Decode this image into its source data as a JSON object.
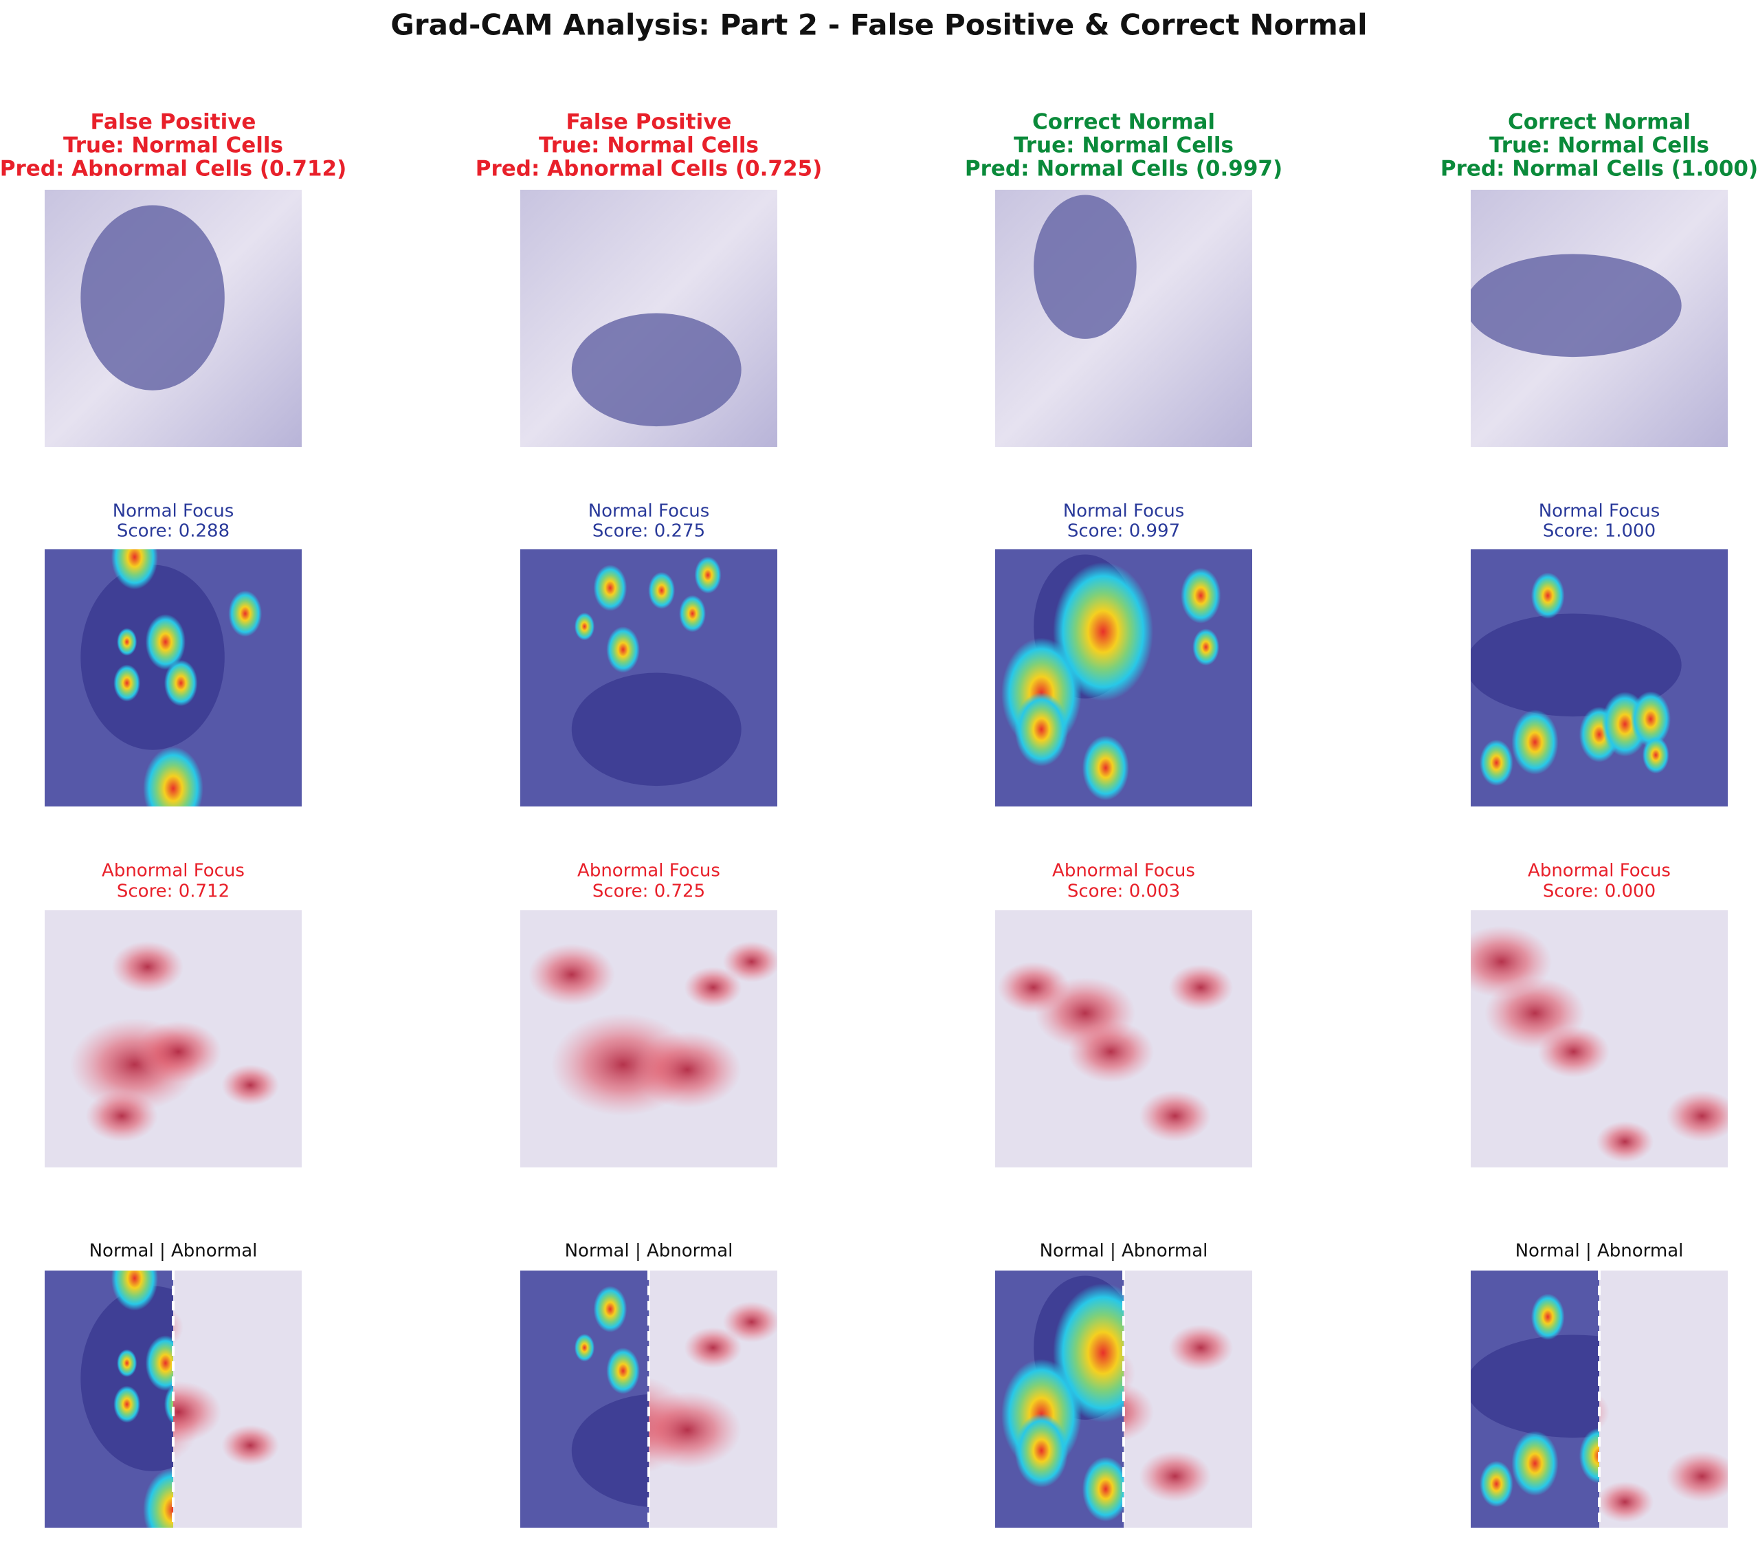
{
  "title": "Grad-CAM Analysis: Part 2 - False Positive & Correct Normal",
  "panels": [
    {
      "header": [
        "False Positive",
        "True: Normal Cells",
        "Pred: Abnormal Cells (0.712)"
      ],
      "normal_label": "Normal Focus",
      "normal_score": "Score: 0.288",
      "abnormal_label": "Abnormal Focus",
      "abnormal_score": "Score: 0.712",
      "split_label": "Normal | Abnormal"
    },
    {
      "header": [
        "False Positive",
        "True: Normal Cells",
        "Pred: Abnormal Cells (0.725)"
      ],
      "normal_label": "Normal Focus",
      "normal_score": "Score: 0.275",
      "abnormal_label": "Abnormal Focus",
      "abnormal_score": "Score: 0.725",
      "split_label": "Normal | Abnormal"
    },
    {
      "header": [
        "Correct Normal",
        "True: Normal Cells",
        "Pred: Normal Cells (0.997)"
      ],
      "normal_label": "Normal Focus",
      "normal_score": "Score: 0.997",
      "abnormal_label": "Abnormal Focus",
      "abnormal_score": "Score: 0.003",
      "split_label": "Normal | Abnormal"
    },
    {
      "header": [
        "Correct Normal",
        "True: Normal Cells",
        "Pred: Normal Cells (1.000)"
      ],
      "normal_label": "Normal Focus",
      "normal_score": "Score: 1.000",
      "abnormal_label": "Abnormal Focus",
      "abnormal_score": "Score: 0.000",
      "split_label": "Normal | Abnormal"
    }
  ]
}
